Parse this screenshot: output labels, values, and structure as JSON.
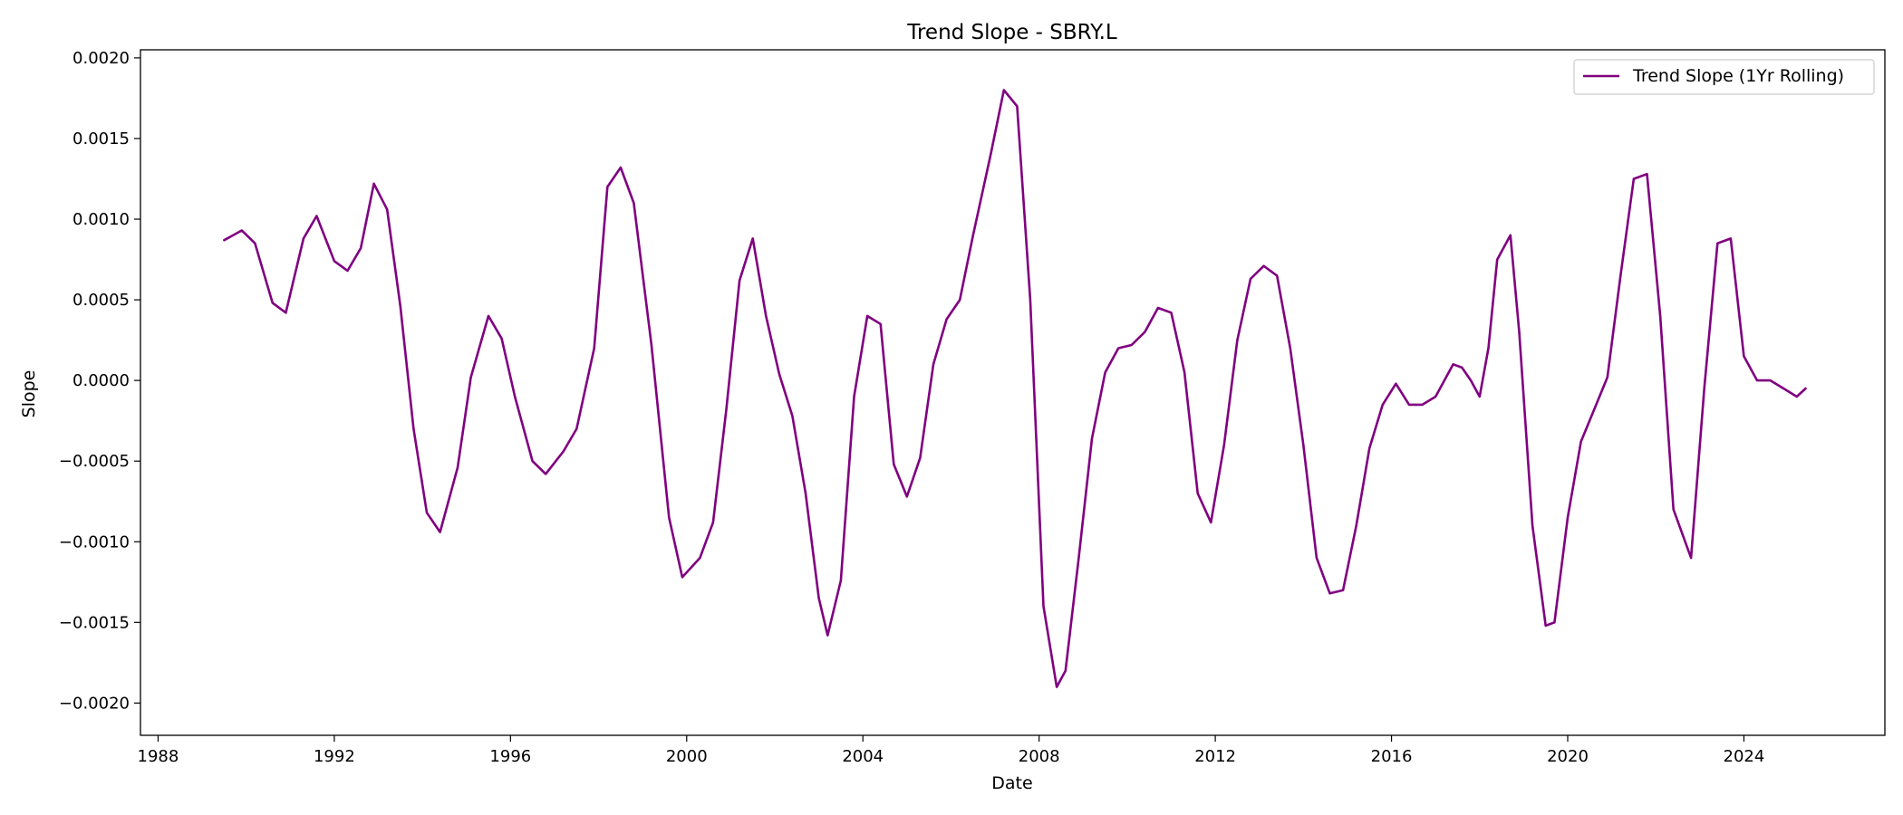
{
  "chart_data": {
    "type": "line",
    "title": "Trend Slope - SBRY.L",
    "xlabel": "Date",
    "ylabel": "Slope",
    "xlim": [
      1987.6,
      2027.2
    ],
    "ylim": [
      -0.0022,
      0.00205
    ],
    "grid": false,
    "legend": "top-right",
    "x_ticks": [
      1988,
      1992,
      1996,
      2000,
      2004,
      2008,
      2012,
      2016,
      2020,
      2024
    ],
    "x_tick_labels": [
      "1988",
      "1992",
      "1996",
      "2000",
      "2004",
      "2008",
      "2012",
      "2016",
      "2020",
      "2024"
    ],
    "y_ticks": [
      0.002,
      0.0015,
      0.001,
      0.0005,
      0,
      -0.0005,
      -0.001,
      -0.0015,
      -0.002
    ],
    "y_tick_labels": [
      "0.0020",
      "0.0015",
      "0.0010",
      "0.0005",
      "0.0000",
      "−0.0005",
      "−0.0010",
      "−0.0015",
      "−0.0020"
    ],
    "series": [
      {
        "name": "Trend Slope (1Yr Rolling)",
        "color": "#800080",
        "x": [
          1989.5,
          1989.9,
          1990.2,
          1990.6,
          1990.9,
          1991.3,
          1991.6,
          1992.0,
          1992.3,
          1992.6,
          1992.9,
          1993.2,
          1993.5,
          1993.8,
          1994.1,
          1994.4,
          1994.8,
          1995.1,
          1995.5,
          1995.8,
          1996.1,
          1996.5,
          1996.8,
          1997.2,
          1997.5,
          1997.9,
          1998.2,
          1998.5,
          1998.8,
          1999.2,
          1999.6,
          1999.9,
          2000.3,
          2000.6,
          2000.9,
          2001.2,
          2001.5,
          2001.8,
          2002.1,
          2002.4,
          2002.7,
          2003.0,
          2003.2,
          2003.5,
          2003.8,
          2004.1,
          2004.4,
          2004.7,
          2005.0,
          2005.3,
          2005.6,
          2005.9,
          2006.2,
          2006.5,
          2006.9,
          2007.2,
          2007.5,
          2007.8,
          2008.1,
          2008.4,
          2008.6,
          2008.9,
          2009.2,
          2009.5,
          2009.8,
          2010.1,
          2010.4,
          2010.7,
          2011.0,
          2011.3,
          2011.6,
          2011.9,
          2012.2,
          2012.5,
          2012.8,
          2013.1,
          2013.4,
          2013.7,
          2014.0,
          2014.3,
          2014.6,
          2014.9,
          2015.2,
          2015.5,
          2015.8,
          2016.1,
          2016.4,
          2016.7,
          2017.0,
          2017.2,
          2017.4,
          2017.6,
          2017.8,
          2018.0,
          2018.2,
          2018.4,
          2018.7,
          2018.9,
          2019.2,
          2019.5,
          2019.7,
          2020.0,
          2020.3,
          2020.6,
          2020.9,
          2021.2,
          2021.5,
          2021.8,
          2022.1,
          2022.4,
          2022.8,
          2023.1,
          2023.4,
          2023.7,
          2024.0,
          2024.3,
          2024.6,
          2024.9,
          2025.2,
          2025.4
        ],
        "y": [
          0.00087,
          0.00093,
          0.00085,
          0.00048,
          0.00042,
          0.00088,
          0.00102,
          0.00074,
          0.00068,
          0.00082,
          0.00122,
          0.00106,
          0.00046,
          -0.0003,
          -0.00082,
          -0.00094,
          -0.00054,
          2e-05,
          0.0004,
          0.00026,
          -0.0001,
          -0.0005,
          -0.00058,
          -0.00044,
          -0.0003,
          0.0002,
          0.0012,
          0.00132,
          0.0011,
          0.00022,
          -0.00085,
          -0.00122,
          -0.0011,
          -0.00088,
          -0.00018,
          0.00062,
          0.00088,
          0.0004,
          4e-05,
          -0.00022,
          -0.0007,
          -0.00135,
          -0.00158,
          -0.00124,
          -0.0001,
          0.0004,
          0.00035,
          -0.00052,
          -0.00072,
          -0.00048,
          0.0001,
          0.00038,
          0.0005,
          0.0009,
          0.0014,
          0.0018,
          0.0017,
          0.0005,
          -0.0014,
          -0.0019,
          -0.0018,
          -0.0011,
          -0.00036,
          5e-05,
          0.0002,
          0.00022,
          0.0003,
          0.00045,
          0.00042,
          5e-05,
          -0.0007,
          -0.00088,
          -0.0004,
          0.00025,
          0.00063,
          0.00071,
          0.00065,
          0.0002,
          -0.0004,
          -0.0011,
          -0.00132,
          -0.0013,
          -0.0009,
          -0.00042,
          -0.00015,
          -2e-05,
          -0.00015,
          -0.00015,
          -0.0001,
          0.0,
          0.0001,
          8e-05,
          0.0,
          -0.0001,
          0.0002,
          0.00075,
          0.0009,
          0.0003,
          -0.0009,
          -0.00152,
          -0.0015,
          -0.00085,
          -0.00038,
          -0.00018,
          2e-05,
          0.00065,
          0.00125,
          0.00128,
          0.0004,
          -0.0008,
          -0.0011,
          -5e-05,
          0.00085,
          0.00088,
          0.00015,
          0.0,
          0.0,
          -5e-05,
          -0.0001,
          -5e-05
        ]
      }
    ]
  }
}
